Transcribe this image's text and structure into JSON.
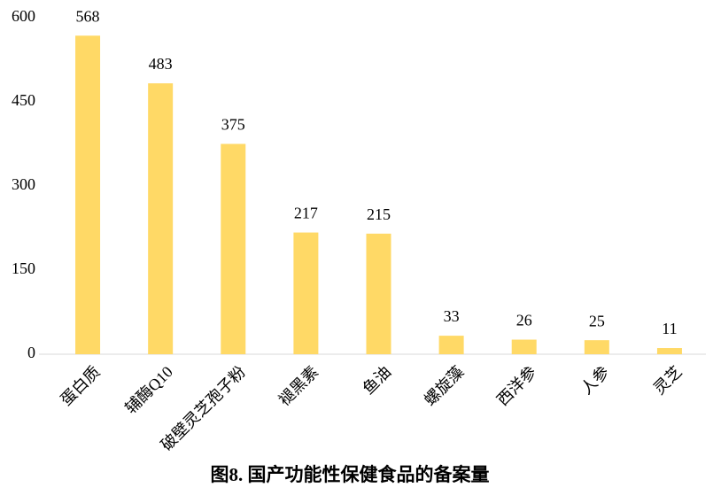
{
  "chart_data": {
    "type": "bar",
    "title": "图8. 国产功能性保健食品的备案量",
    "categories": [
      "蛋白质",
      "辅酶Q10",
      "破壁灵芝孢子粉",
      "褪黑素",
      "鱼油",
      "螺旋藻",
      "西洋参",
      "人参",
      "灵芝"
    ],
    "values": [
      568,
      483,
      375,
      217,
      215,
      33,
      26,
      25,
      11
    ],
    "color": "#ffd966",
    "ylim": [
      0,
      600
    ],
    "yticks": [
      0,
      150,
      300,
      450,
      600
    ],
    "grid": false
  }
}
